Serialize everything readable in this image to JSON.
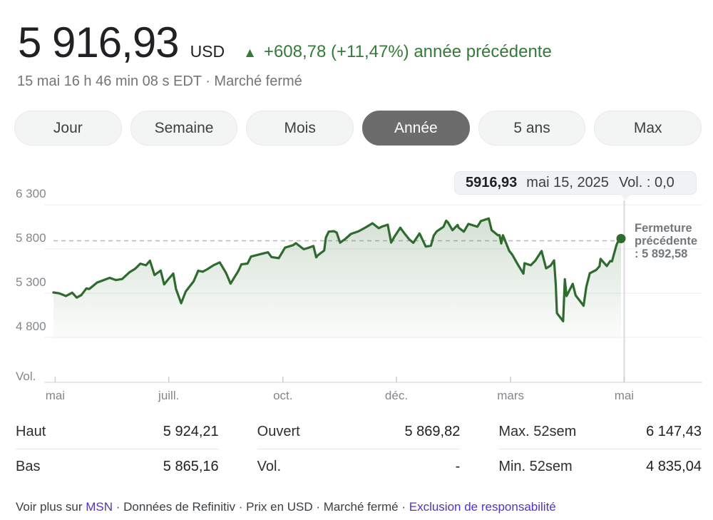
{
  "header": {
    "price": "5 916,93",
    "currency": "USD",
    "change_arrow": "▲",
    "change_text": "+608,78 (+11,47%) année précédente",
    "timestamp": "15 mai 16 h 46 min 08 s EDT · Marché fermé"
  },
  "tabs": [
    {
      "label": "Jour",
      "selected": false
    },
    {
      "label": "Semaine",
      "selected": false
    },
    {
      "label": "Mois",
      "selected": false
    },
    {
      "label": "Année",
      "selected": true
    },
    {
      "label": "5 ans",
      "selected": false
    },
    {
      "label": "Max",
      "selected": false
    }
  ],
  "tooltip": {
    "price": "5916,93",
    "date": "mai 15, 2025",
    "volume": "Vol. : 0,0"
  },
  "annotation": {
    "lines": [
      "Fermeture",
      "précédente",
      ": 5 892,58"
    ]
  },
  "stats": {
    "rows": [
      [
        {
          "label": "Haut",
          "value": "5 924,21"
        },
        {
          "label": "Ouvert",
          "value": "5 869,82"
        },
        {
          "label": "Max. 52sem",
          "value": "6 147,43"
        }
      ],
      [
        {
          "label": "Bas",
          "value": "5 865,16"
        },
        {
          "label": "Vol.",
          "value": "-"
        },
        {
          "label": "Min. 52sem",
          "value": "4 835,04"
        }
      ]
    ]
  },
  "footer": {
    "parts": [
      {
        "text": "Voir plus sur ",
        "link": false
      },
      {
        "text": "MSN",
        "link": true,
        "name": "msn-link"
      },
      {
        "text": " · Données de Refinitiv · Prix en USD · Marché fermé · ",
        "link": false
      },
      {
        "text": "Exclusion de responsabilité",
        "link": true,
        "name": "disclaimer-link"
      }
    ]
  },
  "colors": {
    "positive": "#357a38",
    "line": "#2f6a2f",
    "fill_top": "rgba(47,106,47,0.20)",
    "fill_bottom": "rgba(47,106,47,0.02)",
    "gridline": "#ececec",
    "axis_line": "#e2e2e2",
    "dashed_line": "#b7b7b7",
    "crosshair": "#d9dbdd",
    "link": "#5133c0"
  },
  "chart_data": {
    "type": "area",
    "x_range_labels": [
      "mai",
      "mai"
    ],
    "x_ticks": [
      {
        "label": "mai",
        "t": 0.003
      },
      {
        "label": "juill.",
        "t": 0.202
      },
      {
        "label": "oct.",
        "t": 0.402
      },
      {
        "label": "déc.",
        "t": 0.601
      },
      {
        "label": "mars",
        "t": 0.801
      },
      {
        "label": "mai",
        "t": 1.0
      }
    ],
    "y_ticks": [
      {
        "value": 6300,
        "label": "6 300"
      },
      {
        "value": 5800,
        "label": "5 800"
      },
      {
        "value": 5300,
        "label": "5 300"
      },
      {
        "value": 4800,
        "label": "4 800"
      }
    ],
    "ylim": [
      4550,
      6300
    ],
    "grid": true,
    "previous_close": 5892.58,
    "last_value": 5916.93,
    "volume_label": "Vol.",
    "series": [
      {
        "name": "prix",
        "points": [
          [
            0.0,
            5308
          ],
          [
            0.01,
            5298
          ],
          [
            0.022,
            5268
          ],
          [
            0.033,
            5306
          ],
          [
            0.041,
            5250
          ],
          [
            0.049,
            5278
          ],
          [
            0.058,
            5354
          ],
          [
            0.063,
            5347
          ],
          [
            0.077,
            5421
          ],
          [
            0.082,
            5432
          ],
          [
            0.099,
            5473
          ],
          [
            0.11,
            5448
          ],
          [
            0.121,
            5460
          ],
          [
            0.134,
            5537
          ],
          [
            0.144,
            5576
          ],
          [
            0.153,
            5634
          ],
          [
            0.163,
            5615
          ],
          [
            0.17,
            5667
          ],
          [
            0.178,
            5505
          ],
          [
            0.189,
            5556
          ],
          [
            0.195,
            5399
          ],
          [
            0.203,
            5463
          ],
          [
            0.211,
            5522
          ],
          [
            0.216,
            5346
          ],
          [
            0.225,
            5186
          ],
          [
            0.233,
            5319
          ],
          [
            0.247,
            5434
          ],
          [
            0.255,
            5554
          ],
          [
            0.263,
            5543
          ],
          [
            0.271,
            5570
          ],
          [
            0.282,
            5616
          ],
          [
            0.293,
            5648
          ],
          [
            0.304,
            5529
          ],
          [
            0.312,
            5408
          ],
          [
            0.326,
            5554
          ],
          [
            0.331,
            5626
          ],
          [
            0.342,
            5635
          ],
          [
            0.348,
            5714
          ],
          [
            0.367,
            5745
          ],
          [
            0.378,
            5762
          ],
          [
            0.384,
            5709
          ],
          [
            0.397,
            5696
          ],
          [
            0.408,
            5815
          ],
          [
            0.422,
            5842
          ],
          [
            0.427,
            5865
          ],
          [
            0.441,
            5797
          ],
          [
            0.447,
            5808
          ],
          [
            0.458,
            5833
          ],
          [
            0.463,
            5705
          ],
          [
            0.466,
            5729
          ],
          [
            0.477,
            5783
          ],
          [
            0.48,
            5929
          ],
          [
            0.485,
            5996
          ],
          [
            0.494,
            6001
          ],
          [
            0.499,
            5985
          ],
          [
            0.505,
            5871
          ],
          [
            0.515,
            5917
          ],
          [
            0.524,
            5969
          ],
          [
            0.537,
            5998
          ],
          [
            0.551,
            6047
          ],
          [
            0.562,
            6090
          ],
          [
            0.573,
            6035
          ],
          [
            0.578,
            6051
          ],
          [
            0.589,
            6074
          ],
          [
            0.595,
            5872
          ],
          [
            0.6,
            5931
          ],
          [
            0.611,
            6040
          ],
          [
            0.619,
            5971
          ],
          [
            0.627,
            5907
          ],
          [
            0.634,
            5869
          ],
          [
            0.645,
            5975
          ],
          [
            0.656,
            5827
          ],
          [
            0.665,
            5836
          ],
          [
            0.67,
            5950
          ],
          [
            0.675,
            5997
          ],
          [
            0.687,
            6049
          ],
          [
            0.692,
            6119
          ],
          [
            0.695,
            6101
          ],
          [
            0.703,
            6012
          ],
          [
            0.712,
            6071
          ],
          [
            0.714,
            6041
          ],
          [
            0.723,
            5995
          ],
          [
            0.731,
            6083
          ],
          [
            0.747,
            6052
          ],
          [
            0.753,
            6115
          ],
          [
            0.767,
            6144
          ],
          [
            0.772,
            6013
          ],
          [
            0.783,
            5955
          ],
          [
            0.786,
            5956
          ],
          [
            0.789,
            5862
          ],
          [
            0.792,
            5955
          ],
          [
            0.803,
            5778
          ],
          [
            0.808,
            5739
          ],
          [
            0.819,
            5615
          ],
          [
            0.828,
            5521
          ],
          [
            0.83,
            5639
          ],
          [
            0.841,
            5615
          ],
          [
            0.849,
            5668
          ],
          [
            0.86,
            5777
          ],
          [
            0.868,
            5581
          ],
          [
            0.876,
            5612
          ],
          [
            0.882,
            5671
          ],
          [
            0.885,
            5396
          ],
          [
            0.887,
            5074
          ],
          [
            0.898,
            4983
          ],
          [
            0.901,
            5457
          ],
          [
            0.904,
            5268
          ],
          [
            0.915,
            5406
          ],
          [
            0.92,
            5276
          ],
          [
            0.934,
            5158
          ],
          [
            0.939,
            5376
          ],
          [
            0.945,
            5525
          ],
          [
            0.956,
            5561
          ],
          [
            0.962,
            5604
          ],
          [
            0.964,
            5687
          ],
          [
            0.975,
            5607
          ],
          [
            0.981,
            5664
          ],
          [
            0.984,
            5660
          ],
          [
            0.992,
            5844
          ],
          [
            0.995,
            5887
          ],
          [
            0.997,
            5893
          ],
          [
            1.0,
            5916.93
          ]
        ]
      }
    ]
  }
}
